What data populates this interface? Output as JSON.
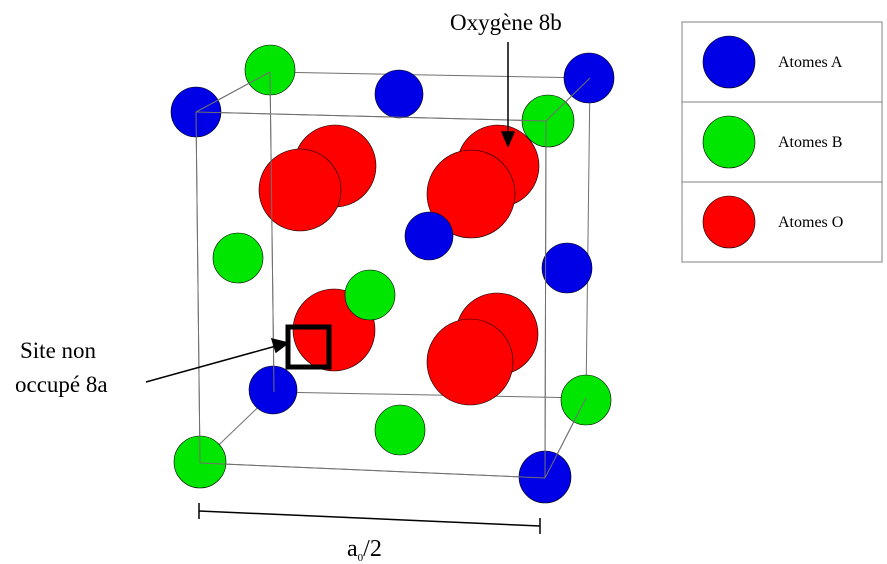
{
  "labels": {
    "oxygen_site": "Oxygène 8b",
    "vacant_site_line1": "Site non",
    "vacant_site_line2": "occupé 8a",
    "lattice_param_base": "a",
    "lattice_param_sub": "0",
    "lattice_param_suffix": "/2"
  },
  "legend": {
    "items": [
      {
        "label": "Atomes A",
        "color": "#0000e6"
      },
      {
        "label": "Atomes B",
        "color": "#00e600"
      },
      {
        "label": "Atomes O",
        "color": "#ff0000"
      }
    ]
  },
  "colors": {
    "atom_a": "#0000e6",
    "atom_b": "#00e600",
    "atom_o": "#ff0000",
    "cell_edge": "#707070",
    "text": "#000000"
  }
}
